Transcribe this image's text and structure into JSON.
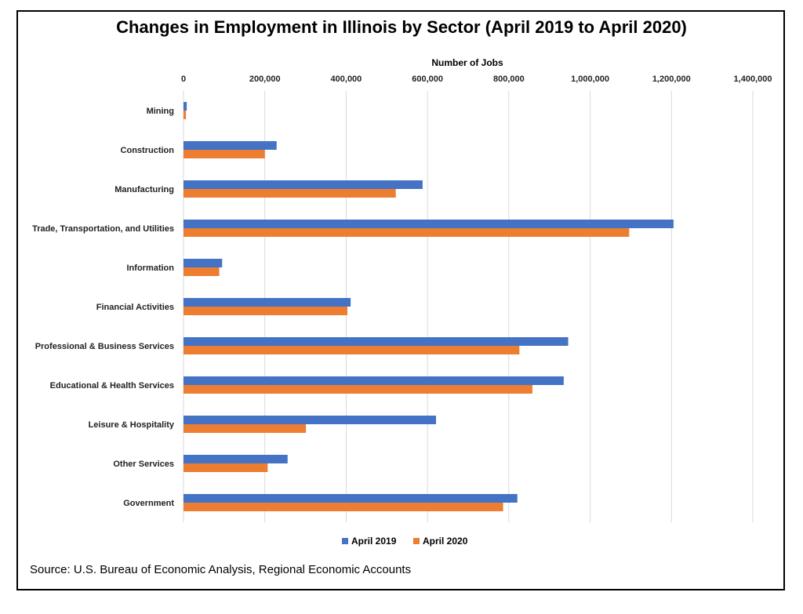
{
  "chart_data": {
    "type": "bar",
    "orientation": "horizontal",
    "title": "Changes in Employment in Illinois by Sector (April 2019 to April 2020)",
    "xlabel": "Number of Jobs",
    "ylabel": "",
    "xlim": [
      0,
      1400000
    ],
    "x_ticks": [
      "0",
      "200,000",
      "400,000",
      "600,000",
      "800,000",
      "1,000,000",
      "1,200,000",
      "1,400,000"
    ],
    "grid": true,
    "legend_position": "bottom",
    "categories": [
      "Mining",
      "Construction",
      "Manufacturing",
      "Trade, Transportation, and Utilities",
      "Information",
      "Financial Activities",
      "Professional & Business Services",
      "Educational & Health Services",
      "Leisure & Hospitality",
      "Other Services",
      "Government"
    ],
    "series": [
      {
        "name": "April 2019",
        "color": "#4472c4",
        "values": [
          8000,
          229000,
          588000,
          1205000,
          95000,
          411000,
          946000,
          935000,
          621000,
          256000,
          821000
        ]
      },
      {
        "name": "April 2020",
        "color": "#ed7d31",
        "values": [
          6000,
          200000,
          522000,
          1096000,
          88000,
          403000,
          826000,
          858000,
          301000,
          207000,
          786000
        ]
      }
    ],
    "source": "Source: U.S. Bureau of Economic Analysis, Regional Economic Accounts"
  }
}
